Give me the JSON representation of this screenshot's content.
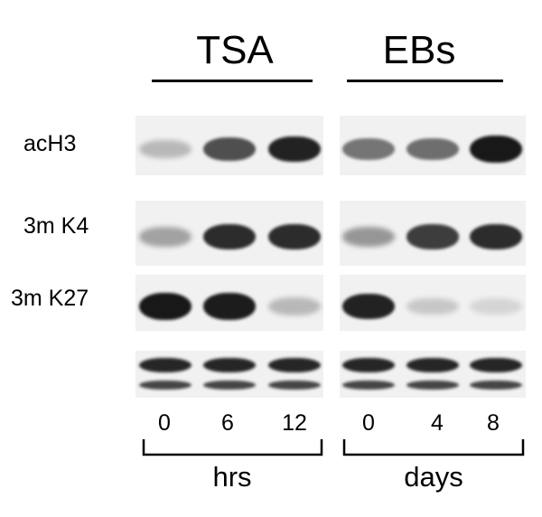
{
  "groups": [
    {
      "header": "TSA",
      "unit": "hrs",
      "lanes": [
        "0",
        "6",
        "12"
      ]
    },
    {
      "header": "EBs",
      "unit": "days",
      "lanes": [
        "0",
        "4",
        "8"
      ]
    }
  ],
  "rows": [
    {
      "label": "acH3",
      "intensity": [
        [
          0.25,
          0.72,
          0.92
        ],
        [
          0.55,
          0.58,
          0.97
        ]
      ]
    },
    {
      "label": "3m K4",
      "intensity": [
        [
          0.35,
          0.88,
          0.88
        ],
        [
          0.4,
          0.8,
          0.88
        ]
      ]
    },
    {
      "label": "3m K27",
      "intensity": [
        [
          0.97,
          0.95,
          0.25
        ],
        [
          0.92,
          0.18,
          0.12
        ]
      ]
    },
    {
      "label": "",
      "intensity": [
        [
          0.9,
          0.9,
          0.9
        ],
        [
          0.9,
          0.9,
          0.9
        ]
      ]
    }
  ],
  "colors": {
    "band": "#111111",
    "background": "#ffffff",
    "panel_bg": "#f1f1f1"
  }
}
